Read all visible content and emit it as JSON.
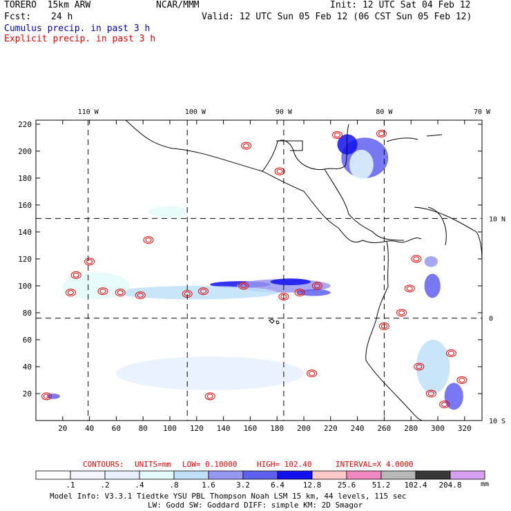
{
  "header": {
    "model": "TORERO  15km ARW",
    "org": "NCAR/MMM",
    "init": "Init: 12 UTC Sat 04 Feb 12",
    "fcst_label": "Fcst:",
    "fcst_value": "24 h",
    "valid": "Valid: 12 UTC Sun 05 Feb 12 (06 CST Sun 05 Feb 12)",
    "legend_cumulus": "Cumulus precip. in past 3 h",
    "legend_explicit": "Explicit precip. in past 3 h"
  },
  "colors": {
    "cumulus_text": "#0000b0",
    "explicit_text": "#e00000",
    "contour": "#e00000",
    "coast": "#000000"
  },
  "chart_data": {
    "type": "heatmap",
    "title": "Cumulus precip. in past 3 h / Explicit precip. in past 3 h",
    "x_grid_ticks": [
      20,
      40,
      60,
      80,
      100,
      120,
      140,
      160,
      180,
      200,
      220,
      240,
      260,
      280,
      300,
      320
    ],
    "y_grid_ticks": [
      20,
      40,
      60,
      80,
      100,
      120,
      140,
      160,
      180,
      200,
      220
    ],
    "xlim": [
      0,
      333
    ],
    "ylim": [
      0,
      223
    ],
    "lon_labels": [
      {
        "label": "110 W",
        "x": 39
      },
      {
        "label": "100 W",
        "x": 119
      },
      {
        "label": "90 W",
        "x": 185
      },
      {
        "label": "80 W",
        "x": 260
      },
      {
        "label": "70 W",
        "x": 333
      }
    ],
    "lat_labels": [
      {
        "label": "10 N",
        "y": 150
      },
      {
        "label": "0",
        "y": 76
      },
      {
        "label": "10 S",
        "y": 0
      }
    ],
    "dashed_lon_x": [
      39,
      113,
      185,
      260
    ],
    "dashed_lat_y": [
      150,
      76
    ],
    "contour_info": {
      "contours_label": "CONTOURS:",
      "units": "UNITS=mm",
      "low": "LOW= 0.10000",
      "high": "HIGH= 102.40",
      "interval": "INTERVAL=X 4.0000"
    },
    "colorbar": {
      "boundaries": [
        ".1",
        ".2",
        ".4",
        ".8",
        "1.6",
        "3.2",
        "6.4",
        "12.8",
        "25.6",
        "51.2",
        "102.4",
        "204.8"
      ],
      "colors": [
        "#ffffff",
        "#f4f4ff",
        "#e8f0ff",
        "#e4fafa",
        "#c0e0f8",
        "#9898f0",
        "#6060f0",
        "#1010f0",
        "#fcc8c8",
        "#f088c0",
        "#b8b8b8",
        "#383838",
        "#d8a0f0"
      ],
      "unit": "mm"
    },
    "cumulus_patches": [
      {
        "x": 130,
        "y": 101,
        "w": 45,
        "h": 5,
        "level": 7
      },
      {
        "x": 150,
        "y": 100,
        "w": 70,
        "h": 10,
        "level": 5
      },
      {
        "x": 175,
        "y": 103,
        "w": 30,
        "h": 5,
        "level": 7
      },
      {
        "x": 60,
        "y": 95,
        "w": 120,
        "h": 10,
        "level": 4
      },
      {
        "x": 20,
        "y": 100,
        "w": 50,
        "h": 20,
        "level": 3
      },
      {
        "x": 228,
        "y": 195,
        "w": 35,
        "h": 30,
        "level": 6
      },
      {
        "x": 225,
        "y": 205,
        "w": 15,
        "h": 15,
        "level": 7
      },
      {
        "x": 234,
        "y": 190,
        "w": 18,
        "h": 22,
        "level": 3
      },
      {
        "x": 290,
        "y": 100,
        "w": 12,
        "h": 18,
        "level": 6
      },
      {
        "x": 290,
        "y": 118,
        "w": 10,
        "h": 8,
        "level": 5
      },
      {
        "x": 284,
        "y": 40,
        "w": 25,
        "h": 40,
        "level": 4
      },
      {
        "x": 305,
        "y": 18,
        "w": 14,
        "h": 20,
        "level": 6
      },
      {
        "x": 60,
        "y": 35,
        "w": 140,
        "h": 25,
        "level": 2
      },
      {
        "x": 84,
        "y": 155,
        "w": 30,
        "h": 8,
        "level": 3
      },
      {
        "x": 195,
        "y": 95,
        "w": 25,
        "h": 5,
        "level": 6
      },
      {
        "x": 8,
        "y": 18,
        "w": 10,
        "h": 4,
        "level": 6
      }
    ],
    "explicit_cells": [
      {
        "x": 8,
        "y": 18
      },
      {
        "x": 30,
        "y": 108
      },
      {
        "x": 26,
        "y": 95
      },
      {
        "x": 40,
        "y": 118
      },
      {
        "x": 50,
        "y": 96
      },
      {
        "x": 63,
        "y": 95
      },
      {
        "x": 78,
        "y": 93
      },
      {
        "x": 84,
        "y": 134
      },
      {
        "x": 113,
        "y": 94
      },
      {
        "x": 125,
        "y": 96
      },
      {
        "x": 155,
        "y": 100
      },
      {
        "x": 185,
        "y": 92
      },
      {
        "x": 197,
        "y": 95
      },
      {
        "x": 210,
        "y": 100
      },
      {
        "x": 157,
        "y": 204
      },
      {
        "x": 182,
        "y": 185
      },
      {
        "x": 225,
        "y": 212
      },
      {
        "x": 258,
        "y": 213
      },
      {
        "x": 284,
        "y": 120
      },
      {
        "x": 279,
        "y": 98
      },
      {
        "x": 273,
        "y": 80
      },
      {
        "x": 260,
        "y": 70
      },
      {
        "x": 286,
        "y": 40
      },
      {
        "x": 295,
        "y": 20
      },
      {
        "x": 305,
        "y": 12
      },
      {
        "x": 318,
        "y": 30
      },
      {
        "x": 310,
        "y": 50
      },
      {
        "x": 130,
        "y": 18
      },
      {
        "x": 206,
        "y": 35
      }
    ]
  },
  "footer": {
    "line1": "Model Info: V3.3.1    Tiedtke YSU PBL  Thompson    Noah LSM  15 km,    44 levels,  115 sec",
    "line2": "LW: Godd SW: Goddard DIFF: simple KM: 2D Smagor"
  }
}
